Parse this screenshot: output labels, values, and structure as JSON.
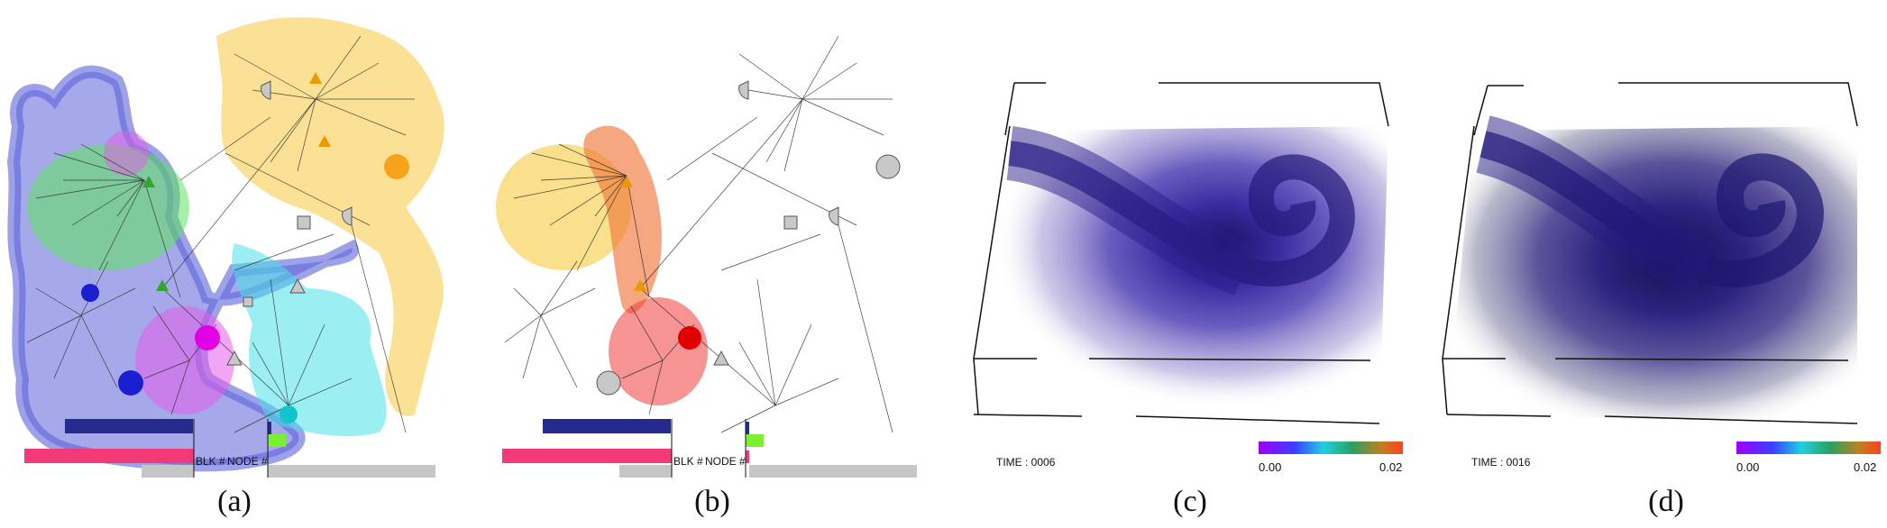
{
  "figure": {
    "panels": [
      {
        "id": "a",
        "caption": "(a)",
        "labels": {
          "blk": "BLK #",
          "node": "NODE #"
        }
      },
      {
        "id": "b",
        "caption": "(b)",
        "labels": {
          "blk": "BLK #",
          "node": "NODE #"
        }
      },
      {
        "id": "c",
        "caption": "(c)",
        "time_label": "TIME : 0006",
        "colorbar": {
          "min": "0.00",
          "max": "0.02"
        }
      },
      {
        "id": "d",
        "caption": "(d)",
        "time_label": "TIME : 0016",
        "colorbar": {
          "min": "0.00",
          "max": "0.02"
        }
      }
    ],
    "colors": {
      "cluster_blue": "#5b63d9",
      "cluster_green": "#5ee35e",
      "cluster_magenta": "#e45ce8",
      "cluster_cyan": "#48e0e6",
      "cluster_yellow": "#f7c93f",
      "cluster_red": "#ef3b3b",
      "bar_navy": "#252a8c",
      "bar_pink": "#f23a78",
      "bar_gray": "#c6c6c6",
      "volume_purple": "#3b2a9a"
    }
  }
}
